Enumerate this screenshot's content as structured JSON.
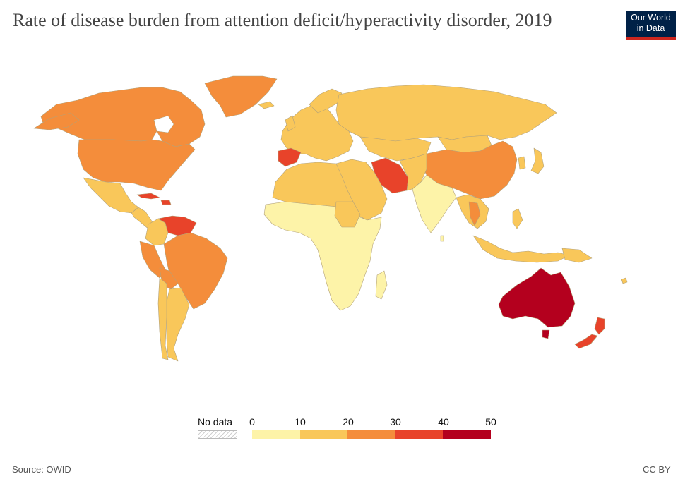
{
  "title": "Rate of disease burden from attention deficit/hyperactivity disorder, 2019",
  "logo": {
    "line1": "Our World",
    "line2": "in Data"
  },
  "legend": {
    "no_data_label": "No data",
    "ticks": [
      "0",
      "10",
      "20",
      "30",
      "40",
      "50"
    ],
    "colors": [
      "#fdf3a8",
      "#f9c75a",
      "#f48d3b",
      "#e8432a",
      "#b4001e"
    ]
  },
  "footer": {
    "source": "Source: OWID",
    "license": "CC BY"
  },
  "chart_data": {
    "type": "choropleth",
    "title": "Rate of disease burden from attention deficit/hyperactivity disorder, 2019",
    "scale": {
      "min": 0,
      "max": 50,
      "bins": [
        0,
        10,
        20,
        30,
        40,
        50
      ]
    },
    "regions": [
      {
        "name": "Canada",
        "bin": "20-30"
      },
      {
        "name": "Greenland",
        "bin": "20-30"
      },
      {
        "name": "United States",
        "bin": "20-30"
      },
      {
        "name": "Mexico",
        "bin": "10-20"
      },
      {
        "name": "Central America",
        "bin": "10-20"
      },
      {
        "name": "Caribbean",
        "bin": "30-40"
      },
      {
        "name": "Venezuela",
        "bin": "30-40"
      },
      {
        "name": "Colombia",
        "bin": "10-20"
      },
      {
        "name": "Brazil",
        "bin": "20-30"
      },
      {
        "name": "Peru",
        "bin": "20-30"
      },
      {
        "name": "Bolivia",
        "bin": "20-30"
      },
      {
        "name": "Argentina",
        "bin": "10-20"
      },
      {
        "name": "Chile",
        "bin": "10-20"
      },
      {
        "name": "Europe",
        "bin": "10-20"
      },
      {
        "name": "Spain",
        "bin": "30-40"
      },
      {
        "name": "Russia",
        "bin": "10-20"
      },
      {
        "name": "Central Asia",
        "bin": "10-20"
      },
      {
        "name": "Middle East",
        "bin": "10-20"
      },
      {
        "name": "Iran",
        "bin": "30-40"
      },
      {
        "name": "North Africa",
        "bin": "10-20"
      },
      {
        "name": "Sub-Saharan Africa",
        "bin": "0-10"
      },
      {
        "name": "Madagascar",
        "bin": "0-10"
      },
      {
        "name": "India",
        "bin": "0-10"
      },
      {
        "name": "China",
        "bin": "20-30"
      },
      {
        "name": "Mongolia",
        "bin": "10-20"
      },
      {
        "name": "Japan",
        "bin": "10-20"
      },
      {
        "name": "Korea",
        "bin": "10-20"
      },
      {
        "name": "Southeast Asia",
        "bin": "10-20"
      },
      {
        "name": "Thailand",
        "bin": "20-30"
      },
      {
        "name": "Indonesia",
        "bin": "10-20"
      },
      {
        "name": "Papua New Guinea",
        "bin": "10-20"
      },
      {
        "name": "Australia",
        "bin": "40-50"
      },
      {
        "name": "New Zealand",
        "bin": "30-40"
      }
    ]
  }
}
